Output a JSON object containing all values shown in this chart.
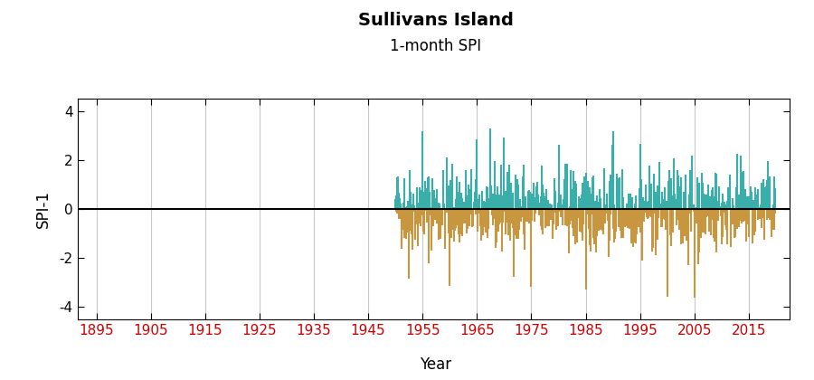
{
  "title": "Sullivans Island",
  "subtitle": "1-month SPI",
  "xlabel": "Year",
  "ylabel": "SPI-1",
  "xlim": [
    1891.5,
    2022.5
  ],
  "ylim": [
    -4.5,
    4.5
  ],
  "yticks": [
    -4,
    -2,
    0,
    2,
    4
  ],
  "xticks": [
    1895,
    1905,
    1915,
    1925,
    1935,
    1945,
    1955,
    1965,
    1975,
    1985,
    1995,
    2005,
    2015
  ],
  "data_start_year": 1950,
  "data_end_year": 2020,
  "color_positive": "#3aafa9",
  "color_negative": "#c8963e",
  "zero_line_color": "#000000",
  "grid_color": "#c8c8c8",
  "background_color": "#ffffff",
  "title_fontsize": 14,
  "subtitle_fontsize": 12,
  "axis_label_fontsize": 12,
  "tick_fontsize": 11,
  "tick_color": "#cc0000",
  "seed": 42
}
